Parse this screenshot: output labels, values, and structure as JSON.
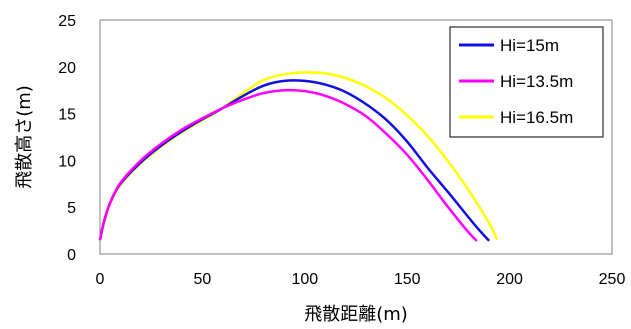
{
  "chart_data": {
    "type": "line",
    "title": "",
    "xlabel": "飛散距離(m)",
    "ylabel": "飛散高さ(m)",
    "xlim": [
      0,
      250
    ],
    "ylim": [
      0,
      25
    ],
    "xticks": [
      0,
      50,
      100,
      150,
      200,
      250
    ],
    "yticks": [
      0,
      5,
      10,
      15,
      20,
      25
    ],
    "grid": false,
    "legend_position": "top-right",
    "series": [
      {
        "name": "Hi=15m",
        "color": "#1010e0",
        "x": [
          0,
          2,
          5,
          10,
          20,
          30,
          40,
          50,
          60,
          70,
          80,
          90,
          100,
          110,
          120,
          130,
          140,
          150,
          160,
          170,
          180,
          185,
          190
        ],
        "y": [
          1.5,
          3.5,
          5.5,
          7.5,
          9.8,
          11.6,
          13.1,
          14.4,
          15.6,
          16.9,
          18.0,
          18.5,
          18.5,
          18.1,
          17.3,
          16.0,
          14.3,
          12.0,
          9.2,
          6.6,
          3.9,
          2.6,
          1.4
        ]
      },
      {
        "name": "Hi=13.5m",
        "color": "#ff00ff",
        "x": [
          0,
          2,
          5,
          10,
          20,
          30,
          40,
          50,
          60,
          70,
          80,
          90,
          100,
          110,
          120,
          130,
          140,
          150,
          160,
          170,
          180,
          184
        ],
        "y": [
          1.5,
          3.5,
          5.5,
          7.6,
          10.0,
          11.8,
          13.3,
          14.5,
          15.6,
          16.5,
          17.2,
          17.5,
          17.4,
          16.9,
          16.0,
          14.7,
          12.8,
          10.6,
          7.9,
          5.0,
          2.3,
          1.4
        ]
      },
      {
        "name": "Hi=16.5m",
        "color": "#ffff00",
        "x": [
          0,
          2,
          5,
          10,
          20,
          30,
          40,
          50,
          60,
          70,
          80,
          90,
          100,
          110,
          120,
          130,
          140,
          150,
          160,
          170,
          180,
          190,
          194
        ],
        "y": [
          1.5,
          3.4,
          5.4,
          7.4,
          9.7,
          11.5,
          13.0,
          14.3,
          15.6,
          17.2,
          18.6,
          19.2,
          19.4,
          19.3,
          18.8,
          17.9,
          16.6,
          14.8,
          12.6,
          9.9,
          6.8,
          3.3,
          1.5
        ]
      }
    ]
  }
}
